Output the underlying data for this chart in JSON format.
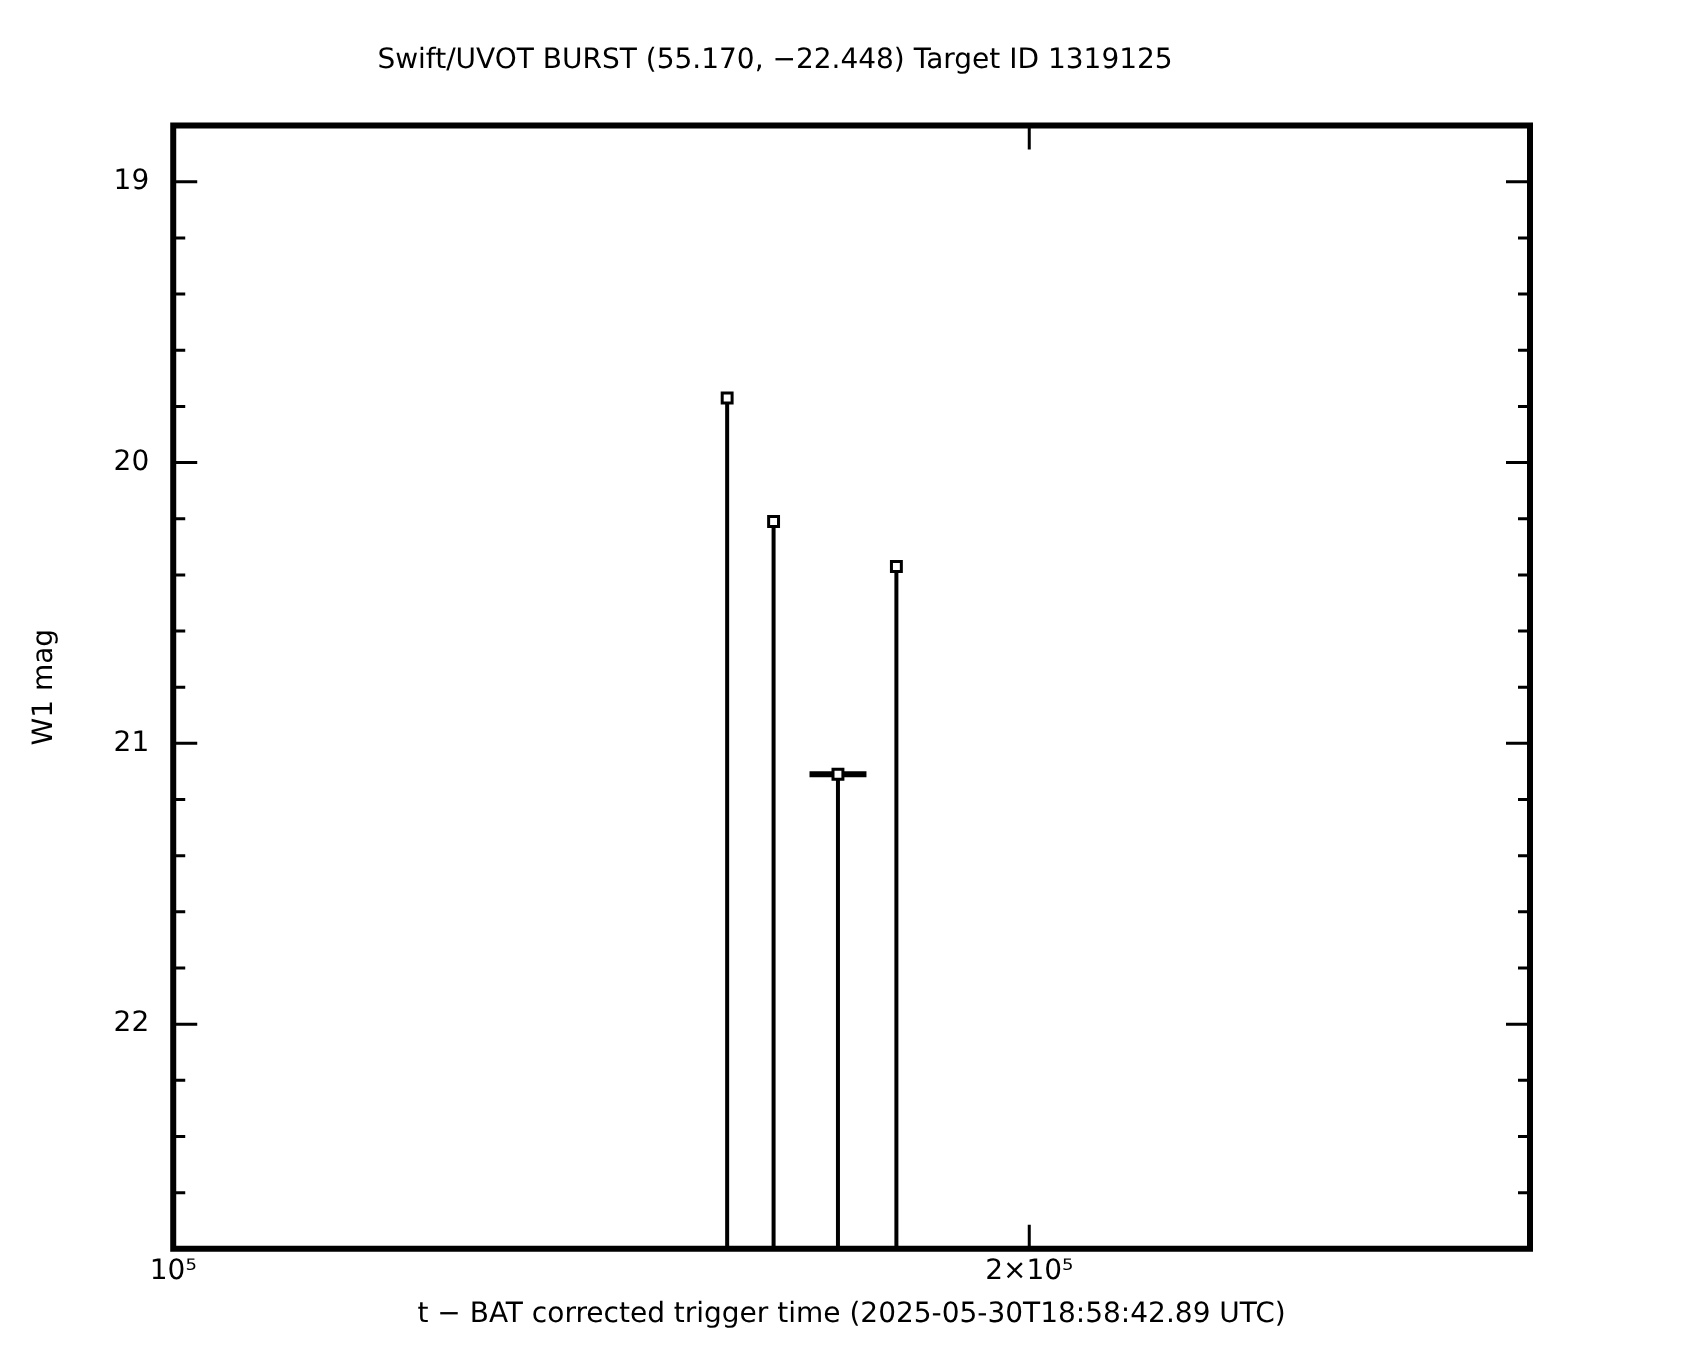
{
  "chart_data": {
    "type": "scatter",
    "title": "Swift/UVOT BURST (55.170, −22.448) Target ID 1319125",
    "xlabel": "t − BAT corrected trigger time (2025-05-30T18:58:42.89 UTC)",
    "ylabel": "W1 mag",
    "log": "x",
    "grid": false,
    "legend": false,
    "marker": "square",
    "x": [
      156600,
      162600,
      171300,
      179600
    ],
    "series": [
      {
        "color": "#000000",
        "values": [
          19.77,
          20.21,
          21.11,
          20.37
        ],
        "errors": [
          [
            19.77,
            22.8
          ],
          [
            20.21,
            22.8
          ],
          [
            21.11,
            22.8
          ],
          [
            20.37,
            22.8
          ]
        ],
        "xerrors": [
          null,
          null,
          [
            167400,
            175300
          ],
          null
        ]
      }
    ],
    "xlim": [
      100000,
      300000
    ],
    "xticks": [
      {
        "value": 100000,
        "label": "10⁵"
      },
      {
        "value": 200000,
        "label": "2×10⁵"
      }
    ],
    "ylim": [
      22.8,
      18.8
    ],
    "yticks": [
      19,
      {
        "value": 19.2,
        "label": null
      },
      {
        "value": 19.4,
        "label": null
      },
      {
        "value": 19.6,
        "label": null
      },
      {
        "value": 19.8,
        "label": null
      },
      20,
      {
        "value": 20.2,
        "label": null
      },
      {
        "value": 20.4,
        "label": null
      },
      {
        "value": 20.6,
        "label": null
      },
      {
        "value": 20.8,
        "label": null
      },
      21,
      {
        "value": 21.2,
        "label": null
      },
      {
        "value": 21.4,
        "label": null
      },
      {
        "value": 21.6,
        "label": null
      },
      {
        "value": 21.8,
        "label": null
      },
      22,
      {
        "value": 22.2,
        "label": null
      },
      {
        "value": 22.4,
        "label": null
      },
      {
        "value": 22.6,
        "label": null
      }
    ]
  }
}
